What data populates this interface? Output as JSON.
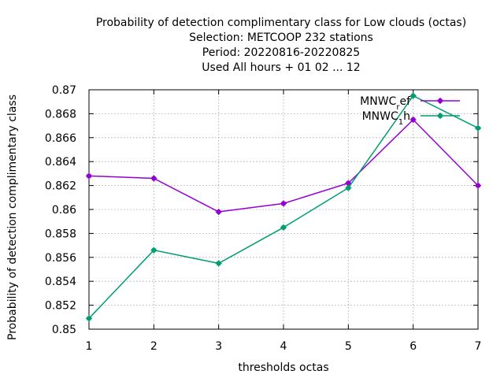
{
  "chart_data": {
    "type": "line",
    "title_lines": [
      "Probability of detection complimentary class  for Low clouds (octas)",
      "Selection: METCOOP    232 stations",
      "Period: 20220816-20220825",
      "Used  All hours + 01 02 ... 12"
    ],
    "xlabel": "thresholds octas",
    "ylabel": "Probability of detection complimentary class",
    "x": [
      1,
      2,
      3,
      4,
      5,
      6,
      7
    ],
    "xlim": [
      1,
      7
    ],
    "ylim": [
      0.85,
      0.87
    ],
    "xticks": [
      "1",
      "2",
      "3",
      "4",
      "5",
      "6",
      "7"
    ],
    "yticks": [
      "0.85",
      "0.852",
      "0.854",
      "0.856",
      "0.858",
      "0.86",
      "0.862",
      "0.864",
      "0.866",
      "0.868",
      "0.87"
    ],
    "grid": true,
    "legend_position": "top-right",
    "series": [
      {
        "name": "MNWC_ref",
        "label_main": "MNWC",
        "label_sub": "r",
        "label_tail": "ef",
        "color": "#9400d3",
        "values": [
          0.8628,
          0.8626,
          0.8598,
          0.8605,
          0.8622,
          0.8675,
          0.862
        ]
      },
      {
        "name": "MNWC_1h",
        "label_main": "MNWC",
        "label_sub": "1",
        "label_tail": "h",
        "color": "#009e73",
        "values": [
          0.8509,
          0.8566,
          0.8555,
          0.8585,
          0.8618,
          0.8695,
          0.8668
        ]
      }
    ]
  }
}
